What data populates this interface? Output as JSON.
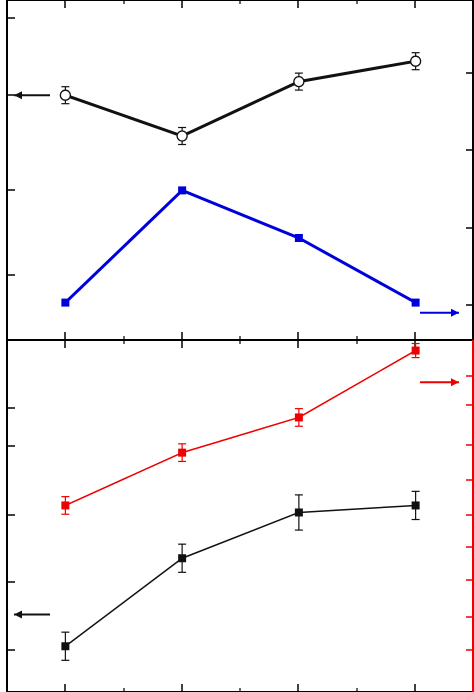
{
  "colors": {
    "background": "#ffffff",
    "axis": "#000000",
    "top_series_1": "#111111",
    "top_series_2": "#0000dd",
    "bottom_series_1": "#111111",
    "bottom_series_2": "#ee0000"
  },
  "chart_data": [
    {
      "panel": "top",
      "type": "line",
      "x": [
        1,
        2,
        3,
        4
      ],
      "xlim": [
        0.5,
        4.5
      ],
      "left_ylim": [
        0,
        100
      ],
      "right_ylim": [
        0,
        100
      ],
      "grid": false,
      "series": [
        {
          "axis": "left",
          "color": "#111111",
          "marker": "open-circle",
          "values": [
            72,
            60,
            76,
            82
          ],
          "error": [
            2.5,
            2.5,
            2.5,
            2.5
          ]
        },
        {
          "axis": "left",
          "color": "#0000dd",
          "marker": "filled-square",
          "values": [
            11,
            44,
            30,
            11
          ],
          "error": [
            0,
            0,
            0,
            0
          ]
        }
      ],
      "arrows": [
        {
          "direction": "left",
          "color": "#111111",
          "y": 72,
          "side": "left"
        },
        {
          "direction": "right",
          "color": "#0000dd",
          "y": 8,
          "side": "right"
        }
      ]
    },
    {
      "panel": "bottom",
      "type": "line",
      "x": [
        1,
        2,
        3,
        4
      ],
      "xlim": [
        0.5,
        4.5
      ],
      "left_ylim": [
        0,
        100
      ],
      "right_ylim": [
        0,
        100
      ],
      "grid": false,
      "series": [
        {
          "axis": "left",
          "color": "#111111",
          "marker": "filled-square",
          "values": [
            13,
            38,
            51,
            53
          ],
          "error": [
            4,
            4,
            5,
            4
          ]
        },
        {
          "axis": "left",
          "color": "#ee0000",
          "marker": "filled-square",
          "values": [
            53,
            68,
            78,
            97
          ],
          "error": [
            2.5,
            2.5,
            2.5,
            2
          ]
        }
      ],
      "arrows": [
        {
          "direction": "left",
          "color": "#111111",
          "y": 22,
          "side": "left"
        },
        {
          "direction": "right",
          "color": "#ee0000",
          "y": 88,
          "side": "right"
        }
      ]
    }
  ]
}
